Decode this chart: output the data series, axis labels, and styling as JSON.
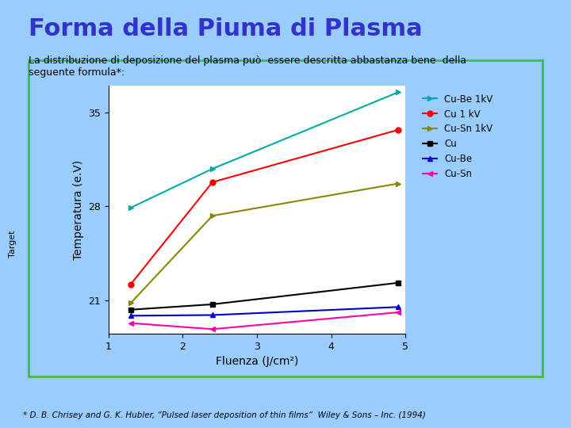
{
  "title": "Forma della Piuma di Plasma",
  "title_color": "#3333CC",
  "bg_color": "#99CCFF",
  "plot_bg": "#FFFFFF",
  "text_intro": "La distribuzione di deposizione del plasma può  essere descritta abbastanza bene  della\nseguente formula*:",
  "xlabel": "Fluenza (J/cm²)",
  "ylabel": "Temperatura (e.V)",
  "xlim": [
    1,
    5
  ],
  "ylim": [
    18.5,
    37
  ],
  "xticks": [
    1,
    2,
    3,
    4,
    5
  ],
  "yticks": [
    21,
    28,
    35
  ],
  "footnote": "* D. B. Chrisey and G. K. Hubler, “Pulsed laser deposition of thin films”  Wiley & Sons – Inc. (1994)",
  "series": [
    {
      "label": "Cu-Be 1kV",
      "color": "#00AAAA",
      "marker": ">",
      "x": [
        1.3,
        2.4,
        4.9
      ],
      "y": [
        27.9,
        30.8,
        36.5
      ]
    },
    {
      "label": "Cu 1 kV",
      "color": "#FF0000",
      "marker": "o",
      "x": [
        1.3,
        2.4,
        4.9
      ],
      "y": [
        22.2,
        29.8,
        33.7
      ]
    },
    {
      "label": "Cu-Sn 1kV",
      "color": "#888800",
      "marker": ">",
      "x": [
        1.3,
        2.4,
        4.9
      ],
      "y": [
        20.8,
        27.3,
        29.7
      ]
    },
    {
      "label": "Cu",
      "color": "#000000",
      "marker": "s",
      "x": [
        1.3,
        2.4,
        4.9
      ],
      "y": [
        20.3,
        20.7,
        22.3
      ]
    },
    {
      "label": "Cu-Be",
      "color": "#0000CC",
      "marker": "^",
      "x": [
        1.3,
        2.4,
        4.9
      ],
      "y": [
        19.85,
        19.9,
        20.5
      ]
    },
    {
      "label": "Cu-Sn",
      "color": "#FF00AA",
      "marker": "<",
      "x": [
        1.3,
        2.4,
        4.9
      ],
      "y": [
        19.3,
        18.85,
        20.1
      ]
    }
  ]
}
